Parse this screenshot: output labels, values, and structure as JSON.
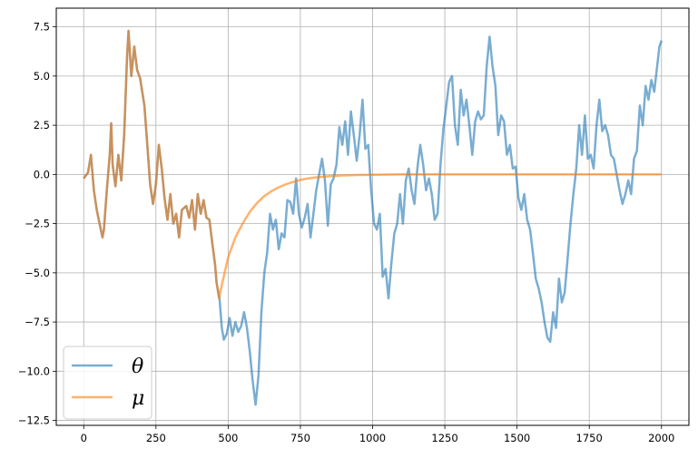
{
  "chart_data": {
    "type": "line",
    "title": "",
    "xlabel": "",
    "ylabel": "",
    "xlim": [
      -95,
      2095
    ],
    "ylim": [
      -12.75,
      8.45
    ],
    "xticks": [
      0,
      250,
      500,
      750,
      1000,
      1250,
      1500,
      1750,
      2000
    ],
    "yticks": [
      -12.5,
      -10.0,
      -7.5,
      -5.0,
      -2.5,
      0.0,
      2.5,
      5.0,
      7.5
    ],
    "xtick_labels": [
      "0",
      "250",
      "500",
      "750",
      "1000",
      "1250",
      "1500",
      "1750",
      "2000"
    ],
    "ytick_labels": [
      "−12.5",
      "−10.0",
      "−7.5",
      "−5.0",
      "−2.5",
      "0.0",
      "2.5",
      "5.0",
      "7.5"
    ],
    "grid": true,
    "legend_position": "lower-left",
    "series": [
      {
        "name": "θ",
        "color": "#1f77b4",
        "points": [
          [
            0,
            -0.2
          ],
          [
            15,
            0.1
          ],
          [
            25,
            1.0
          ],
          [
            35,
            -0.8
          ],
          [
            45,
            -1.8
          ],
          [
            55,
            -2.5
          ],
          [
            65,
            -3.2
          ],
          [
            70,
            -2.8
          ],
          [
            80,
            -0.8
          ],
          [
            90,
            1.0
          ],
          [
            95,
            2.6
          ],
          [
            100,
            0.5
          ],
          [
            110,
            -0.6
          ],
          [
            120,
            1.0
          ],
          [
            130,
            -0.3
          ],
          [
            140,
            2.0
          ],
          [
            150,
            6.0
          ],
          [
            155,
            7.3
          ],
          [
            165,
            5.0
          ],
          [
            175,
            6.5
          ],
          [
            185,
            5.3
          ],
          [
            195,
            4.9
          ],
          [
            210,
            3.5
          ],
          [
            220,
            1.5
          ],
          [
            230,
            -0.5
          ],
          [
            240,
            -1.5
          ],
          [
            250,
            -0.5
          ],
          [
            260,
            1.5
          ],
          [
            270,
            0.3
          ],
          [
            280,
            -1.2
          ],
          [
            290,
            -2.3
          ],
          [
            300,
            -1.0
          ],
          [
            310,
            -2.5
          ],
          [
            320,
            -2.0
          ],
          [
            330,
            -3.2
          ],
          [
            340,
            -1.8
          ],
          [
            355,
            -1.6
          ],
          [
            365,
            -2.2
          ],
          [
            375,
            -1.3
          ],
          [
            385,
            -2.8
          ],
          [
            395,
            -1.0
          ],
          [
            405,
            -2.0
          ],
          [
            415,
            -1.3
          ],
          [
            425,
            -2.2
          ],
          [
            435,
            -2.3
          ],
          [
            445,
            -3.5
          ],
          [
            455,
            -4.6
          ],
          [
            460,
            -5.5
          ],
          [
            470,
            -6.3
          ],
          [
            478,
            -7.8
          ],
          [
            485,
            -8.4
          ],
          [
            495,
            -8.1
          ],
          [
            505,
            -7.3
          ],
          [
            515,
            -8.2
          ],
          [
            525,
            -7.5
          ],
          [
            535,
            -8.0
          ],
          [
            545,
            -7.7
          ],
          [
            555,
            -7.0
          ],
          [
            565,
            -7.8
          ],
          [
            575,
            -9.0
          ],
          [
            585,
            -10.5
          ],
          [
            595,
            -11.7
          ],
          [
            605,
            -10.2
          ],
          [
            615,
            -7.0
          ],
          [
            625,
            -5.0
          ],
          [
            635,
            -4.0
          ],
          [
            645,
            -2.0
          ],
          [
            655,
            -2.8
          ],
          [
            665,
            -2.3
          ],
          [
            675,
            -3.8
          ],
          [
            685,
            -3.0
          ],
          [
            695,
            -3.2
          ],
          [
            705,
            -1.3
          ],
          [
            715,
            -1.4
          ],
          [
            725,
            -2.0
          ],
          [
            735,
            -0.2
          ],
          [
            745,
            -2.0
          ],
          [
            755,
            -2.7
          ],
          [
            765,
            -2.2
          ],
          [
            775,
            -1.5
          ],
          [
            785,
            -3.2
          ],
          [
            795,
            -2.0
          ],
          [
            805,
            -0.8
          ],
          [
            815,
            0.0
          ],
          [
            825,
            0.8
          ],
          [
            835,
            -0.3
          ],
          [
            845,
            -2.6
          ],
          [
            855,
            -0.5
          ],
          [
            865,
            -0.2
          ],
          [
            875,
            0.5
          ],
          [
            885,
            2.4
          ],
          [
            895,
            1.5
          ],
          [
            905,
            2.7
          ],
          [
            915,
            1.0
          ],
          [
            925,
            3.2
          ],
          [
            935,
            2.0
          ],
          [
            945,
            0.7
          ],
          [
            955,
            2.0
          ],
          [
            965,
            3.8
          ],
          [
            975,
            1.3
          ],
          [
            985,
            1.5
          ],
          [
            995,
            -0.8
          ],
          [
            1005,
            -2.5
          ],
          [
            1015,
            -2.8
          ],
          [
            1025,
            -2.0
          ],
          [
            1035,
            -5.2
          ],
          [
            1045,
            -4.8
          ],
          [
            1055,
            -6.3
          ],
          [
            1065,
            -4.5
          ],
          [
            1075,
            -3.0
          ],
          [
            1085,
            -2.5
          ],
          [
            1095,
            -1.0
          ],
          [
            1105,
            -2.5
          ],
          [
            1115,
            -0.3
          ],
          [
            1125,
            0.3
          ],
          [
            1135,
            -0.8
          ],
          [
            1145,
            -1.5
          ],
          [
            1155,
            0.3
          ],
          [
            1165,
            1.5
          ],
          [
            1175,
            0.5
          ],
          [
            1185,
            -0.8
          ],
          [
            1195,
            -0.2
          ],
          [
            1205,
            -1.0
          ],
          [
            1215,
            -2.3
          ],
          [
            1225,
            -2.0
          ],
          [
            1235,
            0.5
          ],
          [
            1245,
            2.3
          ],
          [
            1255,
            3.5
          ],
          [
            1265,
            4.7
          ],
          [
            1275,
            5.0
          ],
          [
            1285,
            2.5
          ],
          [
            1295,
            1.5
          ],
          [
            1305,
            4.3
          ],
          [
            1315,
            3.0
          ],
          [
            1325,
            3.8
          ],
          [
            1335,
            2.5
          ],
          [
            1345,
            1.0
          ],
          [
            1355,
            2.7
          ],
          [
            1365,
            3.2
          ],
          [
            1375,
            2.8
          ],
          [
            1385,
            3.0
          ],
          [
            1395,
            5.5
          ],
          [
            1405,
            7.0
          ],
          [
            1415,
            5.5
          ],
          [
            1425,
            4.5
          ],
          [
            1435,
            2.0
          ],
          [
            1445,
            3.0
          ],
          [
            1455,
            2.7
          ],
          [
            1465,
            1.0
          ],
          [
            1475,
            1.5
          ],
          [
            1485,
            0.3
          ],
          [
            1495,
            0.4
          ],
          [
            1505,
            -1.2
          ],
          [
            1515,
            -1.8
          ],
          [
            1525,
            -1.0
          ],
          [
            1535,
            -2.3
          ],
          [
            1545,
            -2.8
          ],
          [
            1555,
            -4.0
          ],
          [
            1565,
            -5.3
          ],
          [
            1575,
            -5.8
          ],
          [
            1585,
            -6.5
          ],
          [
            1595,
            -7.5
          ],
          [
            1605,
            -8.3
          ],
          [
            1615,
            -8.5
          ],
          [
            1625,
            -7.0
          ],
          [
            1635,
            -7.8
          ],
          [
            1645,
            -5.3
          ],
          [
            1655,
            -6.5
          ],
          [
            1665,
            -6.0
          ],
          [
            1675,
            -4.3
          ],
          [
            1685,
            -2.5
          ],
          [
            1695,
            -1.0
          ],
          [
            1705,
            0.3
          ],
          [
            1715,
            2.5
          ],
          [
            1725,
            1.0
          ],
          [
            1735,
            3.0
          ],
          [
            1745,
            0.8
          ],
          [
            1755,
            1.0
          ],
          [
            1765,
            0.3
          ],
          [
            1775,
            2.5
          ],
          [
            1785,
            3.8
          ],
          [
            1795,
            2.2
          ],
          [
            1805,
            2.5
          ],
          [
            1815,
            2.0
          ],
          [
            1825,
            1.0
          ],
          [
            1835,
            0.8
          ],
          [
            1845,
            0.0
          ],
          [
            1855,
            -0.8
          ],
          [
            1865,
            -1.5
          ],
          [
            1875,
            -1.0
          ],
          [
            1885,
            -0.3
          ],
          [
            1895,
            -1.0
          ],
          [
            1905,
            0.8
          ],
          [
            1915,
            1.2
          ],
          [
            1925,
            3.5
          ],
          [
            1935,
            2.5
          ],
          [
            1945,
            4.5
          ],
          [
            1955,
            3.8
          ],
          [
            1965,
            4.8
          ],
          [
            1975,
            4.2
          ],
          [
            1985,
            5.5
          ],
          [
            1993,
            6.5
          ],
          [
            2000,
            6.8
          ]
        ]
      },
      {
        "name": "μ",
        "color": "#ff7f0e",
        "points": [
          [
            0,
            -0.2
          ],
          [
            15,
            0.1
          ],
          [
            25,
            1.0
          ],
          [
            35,
            -0.8
          ],
          [
            45,
            -1.8
          ],
          [
            55,
            -2.5
          ],
          [
            65,
            -3.2
          ],
          [
            70,
            -2.8
          ],
          [
            80,
            -0.8
          ],
          [
            90,
            1.0
          ],
          [
            95,
            2.6
          ],
          [
            100,
            0.5
          ],
          [
            110,
            -0.6
          ],
          [
            120,
            1.0
          ],
          [
            130,
            -0.3
          ],
          [
            140,
            2.0
          ],
          [
            150,
            6.0
          ],
          [
            155,
            7.3
          ],
          [
            165,
            5.0
          ],
          [
            175,
            6.5
          ],
          [
            185,
            5.3
          ],
          [
            195,
            4.9
          ],
          [
            210,
            3.5
          ],
          [
            220,
            1.5
          ],
          [
            230,
            -0.5
          ],
          [
            240,
            -1.5
          ],
          [
            250,
            -0.5
          ],
          [
            260,
            1.5
          ],
          [
            270,
            0.3
          ],
          [
            280,
            -1.2
          ],
          [
            290,
            -2.3
          ],
          [
            300,
            -1.0
          ],
          [
            310,
            -2.5
          ],
          [
            320,
            -2.0
          ],
          [
            330,
            -3.2
          ],
          [
            340,
            -1.8
          ],
          [
            355,
            -1.6
          ],
          [
            365,
            -2.2
          ],
          [
            375,
            -1.3
          ],
          [
            385,
            -2.8
          ],
          [
            395,
            -1.0
          ],
          [
            405,
            -2.0
          ],
          [
            415,
            -1.3
          ],
          [
            425,
            -2.2
          ],
          [
            435,
            -2.3
          ],
          [
            445,
            -3.5
          ],
          [
            455,
            -4.6
          ],
          [
            460,
            -5.5
          ],
          [
            468,
            -6.3
          ],
          [
            480,
            -5.5
          ],
          [
            500,
            -4.2
          ],
          [
            525,
            -3.2
          ],
          [
            550,
            -2.5
          ],
          [
            575,
            -1.9
          ],
          [
            600,
            -1.45
          ],
          [
            625,
            -1.1
          ],
          [
            650,
            -0.85
          ],
          [
            675,
            -0.65
          ],
          [
            700,
            -0.5
          ],
          [
            725,
            -0.38
          ],
          [
            750,
            -0.28
          ],
          [
            775,
            -0.21
          ],
          [
            800,
            -0.16
          ],
          [
            850,
            -0.09
          ],
          [
            900,
            -0.05
          ],
          [
            950,
            -0.03
          ],
          [
            1000,
            -0.015
          ],
          [
            1100,
            0
          ],
          [
            1200,
            0
          ],
          [
            1400,
            0
          ],
          [
            1600,
            0
          ],
          [
            1800,
            0
          ],
          [
            2000,
            0
          ]
        ]
      }
    ]
  }
}
